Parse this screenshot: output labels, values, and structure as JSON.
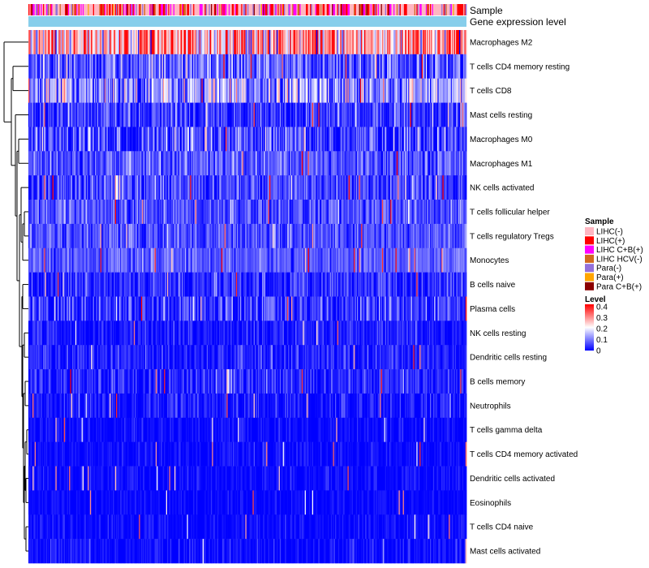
{
  "chart_data": {
    "type": "heatmap",
    "title": "",
    "annotation_rows": [
      "Sample",
      "Gene expression level"
    ],
    "rows": [
      {
        "label": "Macrophages M2",
        "mean": 0.26,
        "spread": 0.11
      },
      {
        "label": "T cells CD4 memory resting",
        "mean": 0.07,
        "spread": 0.06
      },
      {
        "label": "T cells CD8",
        "mean": 0.12,
        "spread": 0.08
      },
      {
        "label": "Mast cells resting",
        "mean": 0.04,
        "spread": 0.05
      },
      {
        "label": "Macrophages M0",
        "mean": 0.04,
        "spread": 0.07
      },
      {
        "label": "Macrophages M1",
        "mean": 0.07,
        "spread": 0.04
      },
      {
        "label": "NK cells activated",
        "mean": 0.05,
        "spread": 0.05
      },
      {
        "label": "T cells follicular helper",
        "mean": 0.06,
        "spread": 0.04
      },
      {
        "label": "T cells regulatory  Tregs",
        "mean": 0.06,
        "spread": 0.04
      },
      {
        "label": "Monocytes",
        "mean": 0.07,
        "spread": 0.03
      },
      {
        "label": "B cells naive",
        "mean": 0.03,
        "spread": 0.04
      },
      {
        "label": "Plasma cells",
        "mean": 0.04,
        "spread": 0.05
      },
      {
        "label": "NK cells resting",
        "mean": 0.015,
        "spread": 0.03
      },
      {
        "label": "Dendritic cells resting",
        "mean": 0.025,
        "spread": 0.03
      },
      {
        "label": "B cells memory",
        "mean": 0.025,
        "spread": 0.04
      },
      {
        "label": "Neutrophils",
        "mean": 0.015,
        "spread": 0.03
      },
      {
        "label": "T cells gamma delta",
        "mean": 0.005,
        "spread": 0.02
      },
      {
        "label": "T cells CD4 memory activated",
        "mean": 0.005,
        "spread": 0.02
      },
      {
        "label": "Dendritic cells activated",
        "mean": 0.004,
        "spread": 0.02
      },
      {
        "label": "Eosinophils",
        "mean": 0.003,
        "spread": 0.015
      },
      {
        "label": "T cells CD4 naive",
        "mean": 0.004,
        "spread": 0.02
      },
      {
        "label": "Mast cells activated",
        "mean": 0.006,
        "spread": 0.025
      }
    ],
    "n_samples": 420,
    "color_scale": {
      "title": "Level",
      "range": [
        0,
        0.4
      ],
      "ticks": [
        "0.4",
        "0.3",
        "0.2",
        "0.1",
        "0"
      ],
      "colors": [
        "#0000ff",
        "#ffffff",
        "#ff0000"
      ]
    },
    "sample_groups": {
      "title": "Sample",
      "entries": [
        {
          "label": "LIHC(-)",
          "color": "#ffb6c1"
        },
        {
          "label": "LIHC(+)",
          "color": "#ff0000"
        },
        {
          "label": "LIHC C+B(+)",
          "color": "#ff00ff"
        },
        {
          "label": "LIHC HCV(-)",
          "color": "#d2691e"
        },
        {
          "label": "Para(-)",
          "color": "#9370db"
        },
        {
          "label": "Para(+)",
          "color": "#ffa500"
        },
        {
          "label": "Para C+B(+)",
          "color": "#8b0000"
        }
      ],
      "proportions": [
        0.45,
        0.22,
        0.13,
        0.06,
        0.08,
        0.03,
        0.03
      ]
    },
    "gene_expression_color": "#87ceeb"
  }
}
